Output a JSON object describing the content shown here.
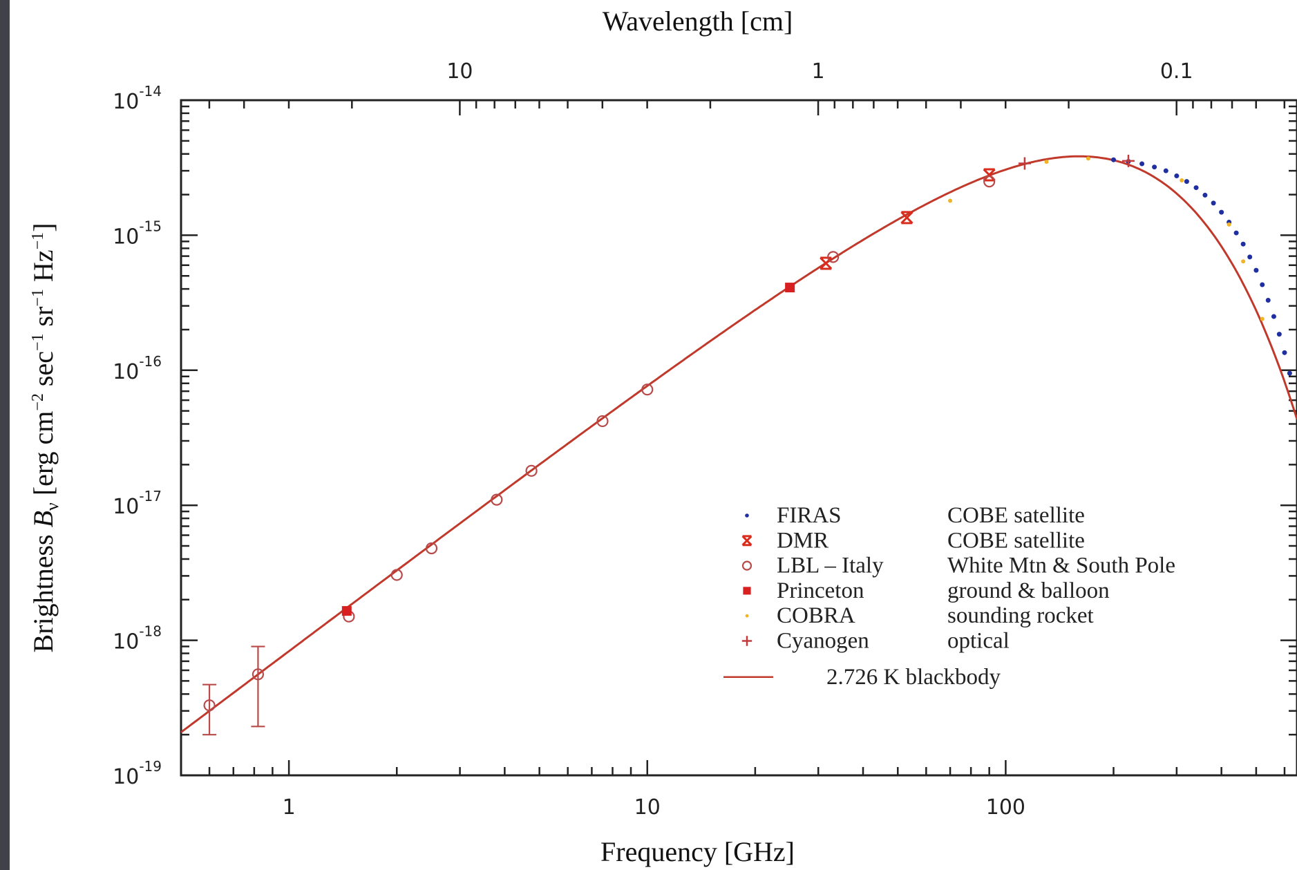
{
  "chart_data": {
    "type": "scatter",
    "xlabel": "Frequency [GHz]",
    "x2label": "Wavelength [cm]",
    "ylabel_prefix": "Brightness ",
    "ylabel_var": "B",
    "ylabel_sub": "ν",
    "ylabel_units": " [erg cm",
    "ylabel_exp1": "−2",
    "ylabel_mid1": " sec",
    "ylabel_exp2": "−1",
    "ylabel_mid2": " sr",
    "ylabel_exp3": "−1",
    "ylabel_mid3": " Hz",
    "ylabel_exp4": "−1",
    "ylabel_end": "]",
    "x_scale": "log",
    "y_scale": "log",
    "xlim": [
      0.5,
      650
    ],
    "ylim": [
      1e-19,
      1e-14
    ],
    "x_ticks": [
      {
        "value": 1,
        "label": "1"
      },
      {
        "value": 10,
        "label": "10"
      },
      {
        "value": 100,
        "label": "100"
      }
    ],
    "x2_ticks": [
      {
        "value_cm": 10,
        "label": "10"
      },
      {
        "value_cm": 1,
        "label": "1"
      },
      {
        "value_cm": 0.1,
        "label": "0.1"
      }
    ],
    "y_ticks": [
      {
        "value": 1e-14,
        "base": "10",
        "exp": "-14"
      },
      {
        "value": 1e-15,
        "base": "10",
        "exp": "-15"
      },
      {
        "value": 1e-16,
        "base": "10",
        "exp": "-16"
      },
      {
        "value": 1e-17,
        "base": "10",
        "exp": "-17"
      },
      {
        "value": 1e-18,
        "base": "10",
        "exp": "-18"
      },
      {
        "value": 1e-19,
        "base": "10",
        "exp": "-19"
      }
    ],
    "legend_placement": "lower-right",
    "series": [
      {
        "name": "FIRAS",
        "source": "COBE satellite",
        "marker": "dot",
        "color": "#1f2fa0",
        "x": [
          200,
          220,
          240,
          260,
          280,
          300,
          320,
          340,
          360,
          380,
          400,
          420,
          440,
          460,
          480,
          500,
          520,
          540,
          560,
          580,
          600,
          620
        ],
        "y": [
          3.62e-15,
          3.52e-15,
          3.38e-15,
          3.2e-15,
          3e-15,
          2.75e-15,
          2.5e-15,
          2.25e-15,
          1.98e-15,
          1.73e-15,
          1.48e-15,
          1.25e-15,
          1.04e-15,
          8.6e-16,
          6.9e-16,
          5.5e-16,
          4.3e-16,
          3.3e-16,
          2.5e-16,
          1.85e-16,
          1.35e-16,
          9.5e-17
        ]
      },
      {
        "name": "DMR",
        "source": "COBE satellite",
        "marker": "x",
        "color": "#d92c1c",
        "x": [
          31.5,
          53,
          90
        ],
        "y": [
          6.2e-16,
          1.35e-15,
          2.8e-15
        ]
      },
      {
        "name": "LBL – Italy",
        "source": "White Mtn & South Pole",
        "marker": "open-circle",
        "color": "#b84a4a",
        "x": [
          0.6,
          0.82,
          1.47,
          2.0,
          2.5,
          3.8,
          4.75,
          7.5,
          10,
          33,
          90
        ],
        "y": [
          3.3e-19,
          5.6e-19,
          1.5e-18,
          3.05e-18,
          4.8e-18,
          1.1e-17,
          1.8e-17,
          4.2e-17,
          7.2e-17,
          6.9e-16,
          2.5e-15
        ],
        "err_low": [
          2e-19,
          2.3e-19,
          null,
          null,
          null,
          null,
          null,
          null,
          null,
          null,
          null
        ],
        "err_high": [
          4.7e-19,
          9e-19,
          null,
          null,
          null,
          null,
          null,
          null,
          null,
          null,
          null
        ]
      },
      {
        "name": "Princeton",
        "source": "ground & balloon",
        "marker": "filled-square",
        "color": "#d92020",
        "x": [
          1.45,
          25
        ],
        "y": [
          1.65e-18,
          4.1e-16
        ]
      },
      {
        "name": "COBRA",
        "source": "sounding rocket",
        "marker": "small-dot",
        "color": "#f0b429",
        "x": [
          70,
          130,
          170,
          310,
          420,
          460,
          520
        ],
        "y": [
          1.8e-15,
          3.5e-15,
          3.7e-15,
          2.55e-15,
          1.2e-15,
          6.4e-16,
          2.4e-16
        ]
      },
      {
        "name": "Cyanogen",
        "source": "optical",
        "marker": "plus",
        "color": "#c33a3a",
        "x": [
          113,
          220
        ],
        "y": [
          3.4e-15,
          3.55e-15
        ]
      },
      {
        "name": "2.726 K blackbody",
        "source": "",
        "marker": "line",
        "color": "#c0392b",
        "temperature_K": 2.726
      }
    ]
  }
}
